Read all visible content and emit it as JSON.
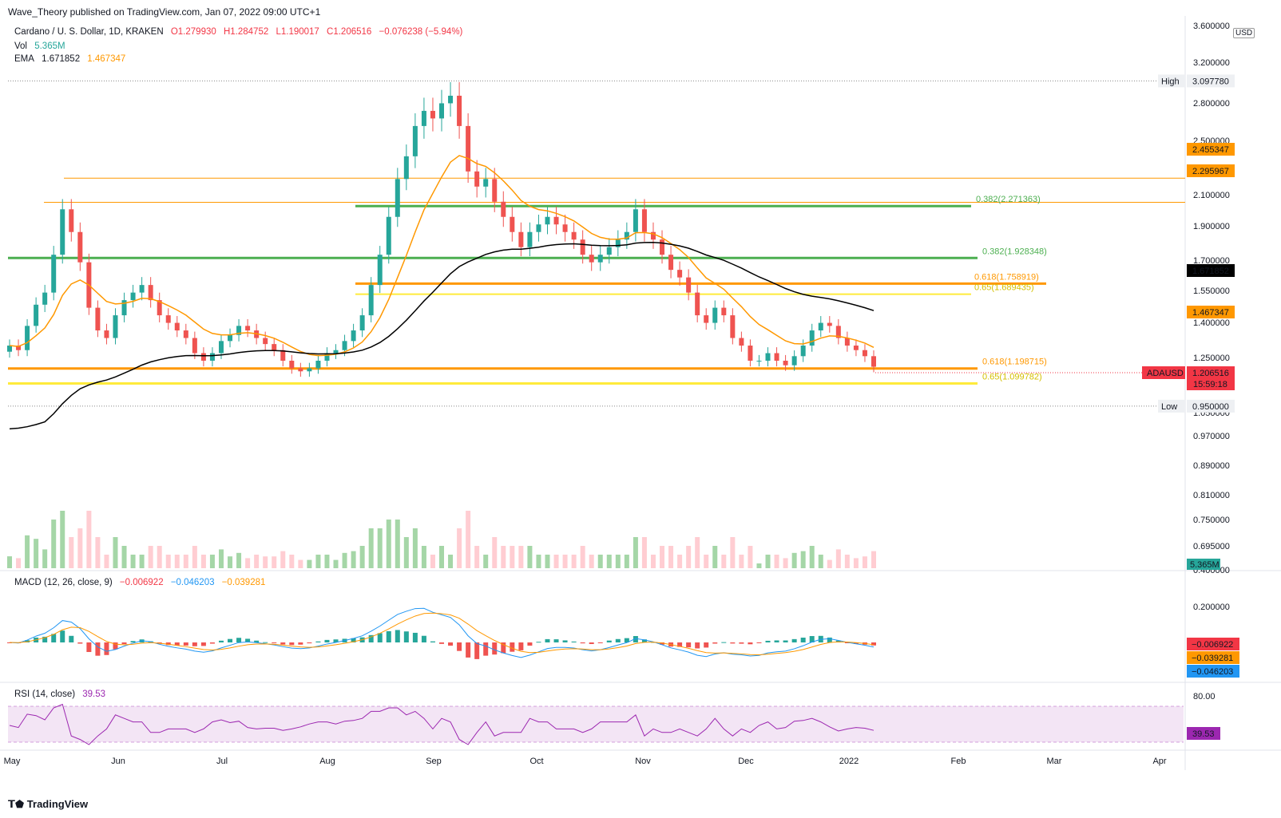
{
  "publisher": "Wave_Theory published on TradingView.com, Jan 07, 2022 09:00 UTC+1",
  "legend": {
    "symbol": "Cardano / U. S. Dollar, 1D, KRAKEN",
    "open": "O1.279930",
    "high": "H1.284752",
    "low": "L1.190017",
    "close": "C1.206516",
    "change": "−0.076238 (−5.94%)",
    "vol_label": "Vol",
    "vol_value": "5.365M",
    "ema_label": "EMA",
    "ema_1": "1.671852",
    "ema_2": "1.467347"
  },
  "currency": "USD",
  "macd_legend": {
    "label": "MACD (12, 26, close, 9)",
    "v1": "−0.006922",
    "v2": "−0.046203",
    "v3": "−0.039281"
  },
  "rsi_legend": {
    "label": "RSI (14, close)",
    "value": "39.53"
  },
  "logo": "TradingView",
  "colors": {
    "up": "#26a69a",
    "down": "#ef5350",
    "ema_short": "#ff9800",
    "ema_long": "#000000",
    "green_level": "#4caf50",
    "orange_level": "#ff9800",
    "yellow_level": "#ffeb3b",
    "macd": "#2196f3",
    "signal": "#ff9800",
    "rsi": "#9c27b0"
  },
  "chart_data": {
    "type": "candlestick",
    "symbol": "ADAUSD",
    "price_axis_labels": [
      "3.600000",
      "3.200000",
      "2.800000",
      "2.500000",
      "2.100000",
      "1.900000",
      "1.700000",
      "1.550000",
      "1.400000",
      "1.250000",
      "1.050000",
      "0.970000",
      "0.890000",
      "0.810000",
      "0.750000",
      "0.695000",
      "0.400000"
    ],
    "time_axis_labels": [
      "May",
      "Jun",
      "Jul",
      "Aug",
      "Sep",
      "Oct",
      "Nov",
      "Dec",
      "2022",
      "Feb",
      "Mar",
      "Apr"
    ],
    "high": {
      "label": "High",
      "value": "3.097780"
    },
    "low": {
      "label": "Low",
      "value": "0.950000"
    },
    "price_badges": [
      {
        "value": "2.455347",
        "color": "#ff9800",
        "text_color": "#000"
      },
      {
        "value": "2.295967",
        "color": "#ff9800",
        "text_color": "#000"
      },
      {
        "value": "1.671852",
        "color": "#000000",
        "text_color": "#fff"
      },
      {
        "value": "1.467347",
        "color": "#ff9800",
        "text_color": "#000"
      },
      {
        "value": "1.206516",
        "color": "#f23645",
        "text_color": "#fff"
      }
    ],
    "last_symbol": "ADAUSD",
    "countdown": "15:59:18",
    "volume_badge": "5.365M",
    "fib_levels": [
      {
        "label": "0.382(2.271363)",
        "price": 2.271363,
        "color": "#4caf50"
      },
      {
        "label": "0.382(1.928348)",
        "price": 1.928348,
        "color": "#4caf50"
      },
      {
        "label": "0.618(1.758919)",
        "price": 1.758919,
        "color": "#ff9800"
      },
      {
        "label": "0.65(1.689435)",
        "price": 1.689435,
        "color": "#ffeb3b"
      },
      {
        "label": "0.618(1.198715)",
        "price": 1.198715,
        "color": "#ff9800"
      },
      {
        "label": "0.65(1.099782)",
        "price": 1.099782,
        "color": "#ffeb3b"
      }
    ],
    "horizontal_lines": [
      2.455347,
      2.295967
    ],
    "macd_axis_labels": [
      "0.400000",
      "0.200000"
    ],
    "macd_badges": [
      {
        "value": "−0.006922",
        "color": "#f23645"
      },
      {
        "value": "−0.039281",
        "color": "#ff9800"
      },
      {
        "value": "−0.046203",
        "color": "#2196f3"
      }
    ],
    "rsi_axis_labels": [
      "80.00"
    ],
    "rsi_badge": "39.53",
    "close_series": [
      1.35,
      1.32,
      1.48,
      1.62,
      1.7,
      1.95,
      2.25,
      2.1,
      1.9,
      1.6,
      1.45,
      1.4,
      1.55,
      1.65,
      1.7,
      1.75,
      1.65,
      1.55,
      1.5,
      1.45,
      1.4,
      1.3,
      1.25,
      1.3,
      1.38,
      1.42,
      1.48,
      1.45,
      1.4,
      1.36,
      1.32,
      1.25,
      1.2,
      1.18,
      1.2,
      1.25,
      1.3,
      1.32,
      1.38,
      1.45,
      1.55,
      1.75,
      1.95,
      2.2,
      2.45,
      2.6,
      2.8,
      2.9,
      2.85,
      2.95,
      3.0,
      2.8,
      2.5,
      2.4,
      2.45,
      2.3,
      2.2,
      2.1,
      2.0,
      2.1,
      2.15,
      2.2,
      2.15,
      2.1,
      2.05,
      1.95,
      1.9,
      1.95,
      2.0,
      2.05,
      2.1,
      2.25,
      2.1,
      2.05,
      1.95,
      1.85,
      1.8,
      1.7,
      1.55,
      1.5,
      1.6,
      1.55,
      1.4,
      1.35,
      1.25,
      1.25,
      1.3,
      1.25,
      1.22,
      1.28,
      1.35,
      1.45,
      1.5,
      1.48,
      1.4,
      1.35,
      1.32,
      1.28,
      1.21
    ]
  }
}
